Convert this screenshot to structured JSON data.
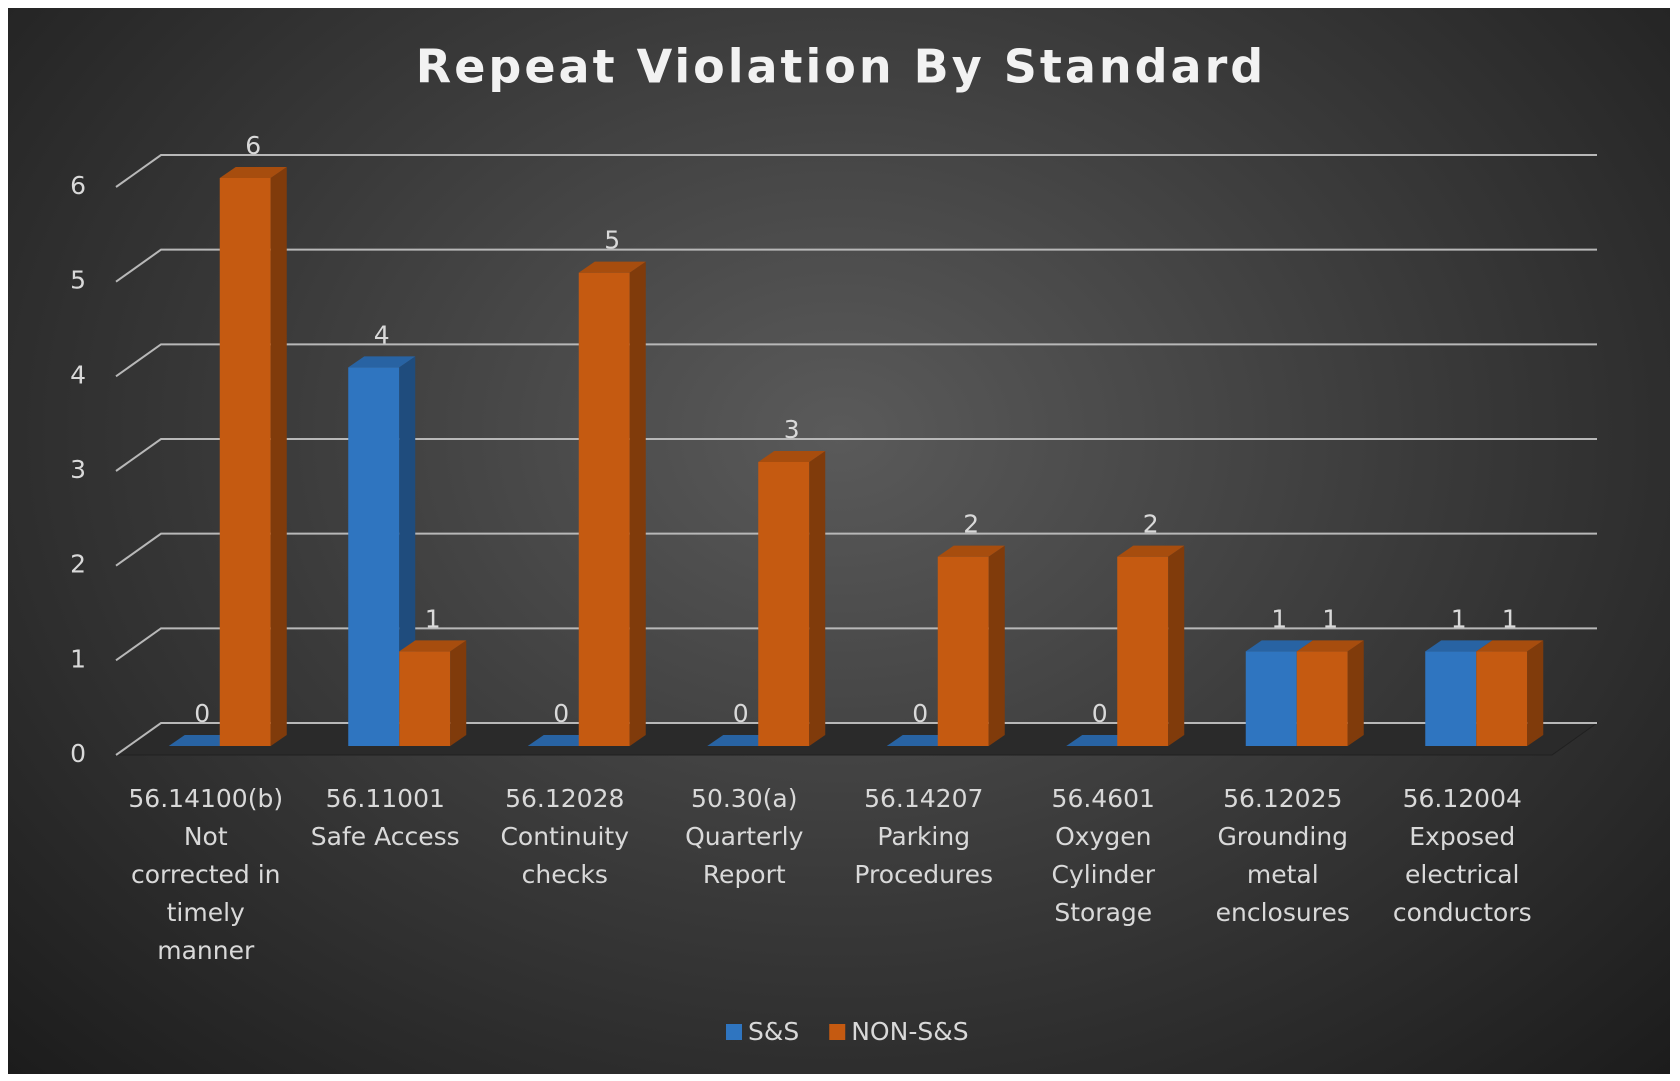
{
  "chart_data": {
    "type": "bar3d",
    "title": "Repeat Violation By Standard",
    "categories": [
      "56.14100(b)\nNot\ncorrected in\ntimely\nmanner",
      "56.11001\nSafe Access",
      "56.12028\nContinuity\nchecks",
      "50.30(a)\nQuarterly\nReport",
      "56.14207\nParking\nProcedures",
      "56.4601\nOxygen\nCylinder\nStorage",
      "56.12025\nGrounding\nmetal\nenclosures",
      "56.12004\nExposed\nelectrical\nconductors"
    ],
    "series": [
      {
        "name": "S&S",
        "color": "#2f75c0",
        "values": [
          0,
          4,
          0,
          0,
          0,
          0,
          1,
          1
        ]
      },
      {
        "name": "NON-S&S",
        "color": "#c55a11",
        "values": [
          6,
          1,
          5,
          3,
          2,
          2,
          1,
          1
        ]
      }
    ],
    "ylim": [
      0,
      6
    ],
    "yticks": [
      0,
      1,
      2,
      3,
      4,
      5,
      6
    ],
    "grid": true,
    "legend": "bottom",
    "data_labels": true
  }
}
